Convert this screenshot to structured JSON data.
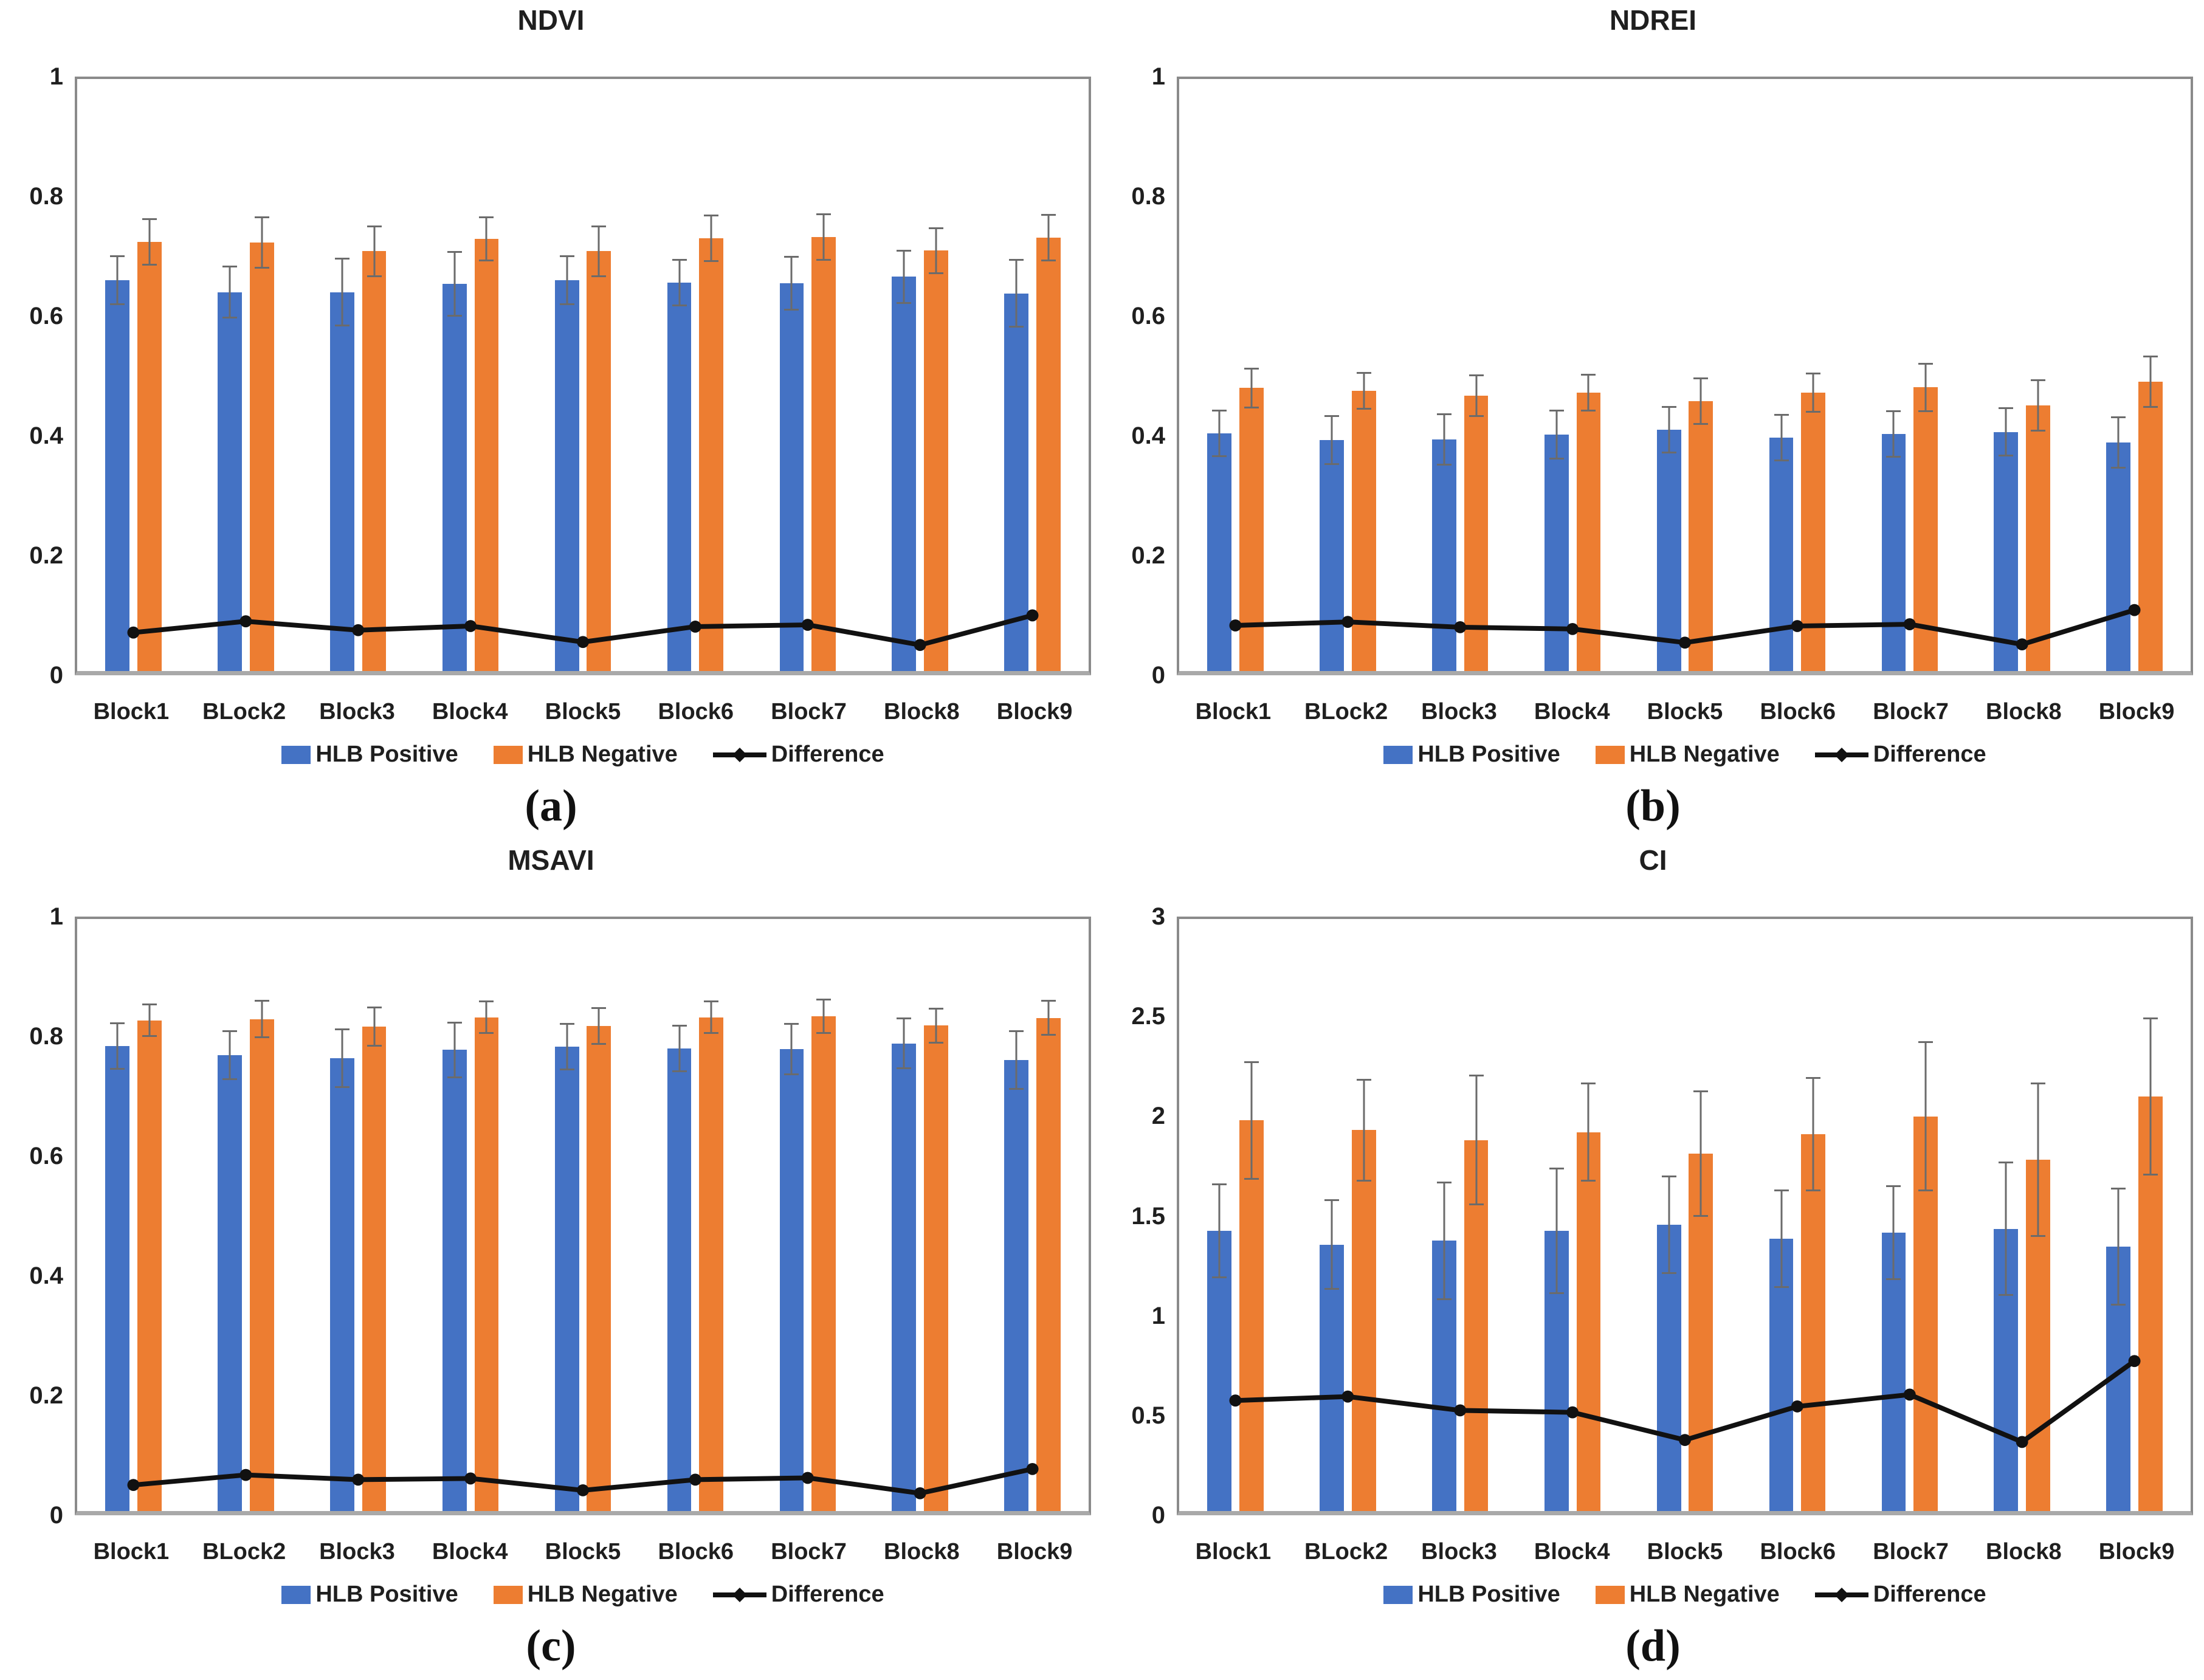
{
  "legend": {
    "positive": "HLB Positive",
    "negative": "HLB Negative",
    "difference": "Difference"
  },
  "colors": {
    "positive": "#4472C4",
    "negative": "#ED7D31",
    "difference": "#111111",
    "error_bar": "#6b6b6b",
    "plot_border": "#8a8a8a",
    "text": "#1f1f1f"
  },
  "chart_data": [
    {
      "type": "bar",
      "title": "NDVI",
      "caption": "(a)",
      "categories": [
        "Block1",
        "BLock2",
        "Block3",
        "Block4",
        "Block5",
        "Block6",
        "Block7",
        "Block8",
        "Block9"
      ],
      "xlabel": "",
      "ylabel": "",
      "ylim": [
        0,
        1
      ],
      "ytick_values": [
        1,
        0.8,
        0.6,
        0.4,
        0.2,
        0
      ],
      "ytick_labels": [
        "1",
        "0.8",
        "0.6",
        "0.4",
        "0.2",
        "0"
      ],
      "grid": false,
      "legend_position": "bottom",
      "series": [
        {
          "name": "HLB Positive",
          "kind": "bar",
          "values": [
            0.66,
            0.64,
            0.64,
            0.654,
            0.66,
            0.656,
            0.655,
            0.666,
            0.638
          ],
          "errors": [
            0.042,
            0.045,
            0.058,
            0.055,
            0.042,
            0.04,
            0.046,
            0.046,
            0.058
          ]
        },
        {
          "name": "HLB Negative",
          "kind": "bar",
          "values": [
            0.725,
            0.724,
            0.709,
            0.73,
            0.709,
            0.731,
            0.733,
            0.71,
            0.732
          ],
          "errors": [
            0.04,
            0.044,
            0.044,
            0.038,
            0.044,
            0.04,
            0.04,
            0.04,
            0.04
          ]
        },
        {
          "name": "Difference",
          "kind": "line",
          "values": [
            0.065,
            0.084,
            0.069,
            0.076,
            0.049,
            0.075,
            0.078,
            0.044,
            0.094
          ]
        }
      ]
    },
    {
      "type": "bar",
      "title": "NDREI",
      "caption": "(b)",
      "categories": [
        "Block1",
        "BLock2",
        "Block3",
        "Block4",
        "Block5",
        "Block6",
        "Block7",
        "Block8",
        "Block9"
      ],
      "xlabel": "",
      "ylabel": "",
      "ylim": [
        0,
        1
      ],
      "ytick_values": [
        1,
        0.8,
        0.6,
        0.4,
        0.2,
        0
      ],
      "ytick_labels": [
        "1",
        "0.8",
        "0.6",
        "0.4",
        "0.2",
        "0"
      ],
      "grid": false,
      "legend_position": "bottom",
      "series": [
        {
          "name": "HLB Positive",
          "kind": "bar",
          "values": [
            0.401,
            0.39,
            0.391,
            0.399,
            0.408,
            0.394,
            0.4,
            0.404,
            0.386
          ],
          "errors": [
            0.04,
            0.042,
            0.044,
            0.042,
            0.04,
            0.04,
            0.04,
            0.042,
            0.044
          ]
        },
        {
          "name": "HLB Negative",
          "kind": "bar",
          "values": [
            0.478,
            0.473,
            0.465,
            0.47,
            0.456,
            0.47,
            0.479,
            0.449,
            0.489
          ],
          "errors": [
            0.034,
            0.032,
            0.036,
            0.032,
            0.04,
            0.034,
            0.042,
            0.044,
            0.044
          ]
        },
        {
          "name": "Difference",
          "kind": "line",
          "values": [
            0.077,
            0.083,
            0.074,
            0.071,
            0.048,
            0.076,
            0.079,
            0.045,
            0.103
          ]
        }
      ]
    },
    {
      "type": "bar",
      "title": "MSAVI",
      "caption": "(c)",
      "categories": [
        "Block1",
        "BLock2",
        "Block3",
        "Block4",
        "Block5",
        "Block6",
        "Block7",
        "Block8",
        "Block9"
      ],
      "xlabel": "",
      "ylabel": "",
      "ylim": [
        0,
        1
      ],
      "ytick_values": [
        1,
        0.8,
        0.6,
        0.4,
        0.2,
        0
      ],
      "ytick_labels": [
        "1",
        "0.8",
        "0.6",
        "0.4",
        "0.2",
        "0"
      ],
      "grid": false,
      "legend_position": "bottom",
      "series": [
        {
          "name": "HLB Positive",
          "kind": "bar",
          "values": [
            0.785,
            0.77,
            0.765,
            0.779,
            0.784,
            0.781,
            0.78,
            0.79,
            0.762
          ],
          "errors": [
            0.04,
            0.042,
            0.05,
            0.048,
            0.04,
            0.04,
            0.044,
            0.044,
            0.05
          ]
        },
        {
          "name": "HLB Negative",
          "kind": "bar",
          "values": [
            0.829,
            0.831,
            0.818,
            0.834,
            0.819,
            0.834,
            0.836,
            0.82,
            0.833
          ],
          "errors": [
            0.028,
            0.032,
            0.034,
            0.028,
            0.032,
            0.028,
            0.03,
            0.03,
            0.03
          ]
        },
        {
          "name": "Difference",
          "kind": "line",
          "values": [
            0.044,
            0.061,
            0.053,
            0.055,
            0.035,
            0.053,
            0.056,
            0.03,
            0.071
          ]
        }
      ]
    },
    {
      "type": "bar",
      "title": "CI",
      "caption": "(d)",
      "categories": [
        "Block1",
        "BLock2",
        "Block3",
        "Block4",
        "Block5",
        "Block6",
        "Block7",
        "Block8",
        "Block9"
      ],
      "xlabel": "",
      "ylabel": "",
      "ylim": [
        0,
        3
      ],
      "ytick_values": [
        3,
        2.5,
        2,
        1.5,
        1,
        0.5,
        0
      ],
      "ytick_labels": [
        "3",
        "2.5",
        "2",
        "1.5",
        "1",
        "0.5",
        "0"
      ],
      "grid": false,
      "legend_position": "bottom",
      "series": [
        {
          "name": "HLB Positive",
          "kind": "bar",
          "values": [
            1.42,
            1.35,
            1.37,
            1.42,
            1.45,
            1.38,
            1.41,
            1.43,
            1.34
          ],
          "errors": [
            0.24,
            0.23,
            0.3,
            0.32,
            0.25,
            0.25,
            0.24,
            0.34,
            0.3
          ]
        },
        {
          "name": "HLB Negative",
          "kind": "bar",
          "values": [
            1.98,
            1.93,
            1.88,
            1.92,
            1.81,
            1.91,
            2.0,
            1.78,
            2.1
          ],
          "errors": [
            0.3,
            0.26,
            0.33,
            0.25,
            0.32,
            0.29,
            0.38,
            0.39,
            0.4
          ]
        },
        {
          "name": "Difference",
          "kind": "line",
          "values": [
            0.56,
            0.58,
            0.51,
            0.5,
            0.36,
            0.53,
            0.59,
            0.35,
            0.76
          ]
        }
      ]
    }
  ]
}
